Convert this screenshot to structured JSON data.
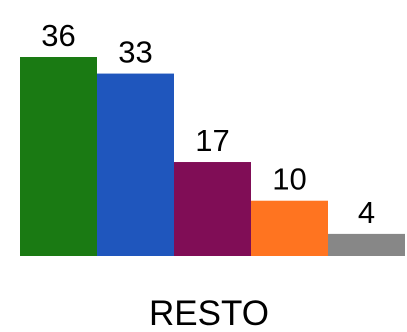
{
  "chart_data": {
    "type": "bar",
    "categories": [
      "RESTO"
    ],
    "series": [
      {
        "values": [
          36
        ],
        "color": "#1a7a13"
      },
      {
        "values": [
          33
        ],
        "color": "#1f56bd"
      },
      {
        "values": [
          17
        ],
        "color": "#800d56"
      },
      {
        "values": [
          10
        ],
        "color": "#ff7420"
      },
      {
        "values": [
          4
        ],
        "color": "#878787"
      }
    ],
    "data_labels": [
      "36",
      "33",
      "17",
      "10",
      "4"
    ],
    "ylim": [
      0,
      36
    ],
    "grid": false,
    "legend": "none"
  }
}
